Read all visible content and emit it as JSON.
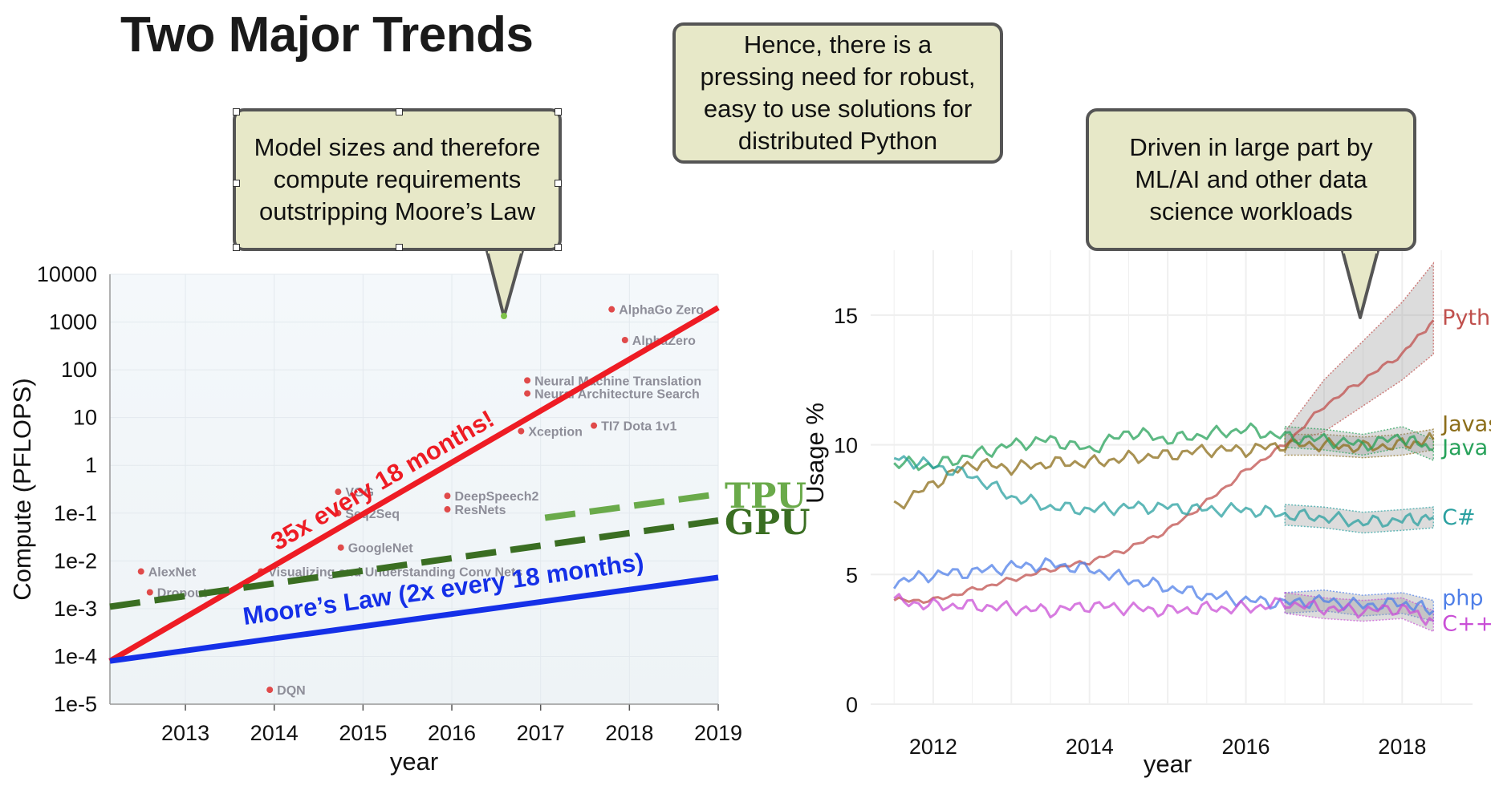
{
  "title": "Two Major Trends",
  "callouts": {
    "model": "Model sizes and therefore\ncompute requirements\noutstripping Moore’s Law",
    "need": "Hence, there is a\npressing need for robust,\neasy to use solutions for\ndistributed Python",
    "ml": "Driven in large part by\nML/AI and other data\nscience workloads"
  },
  "colors": {
    "red_trend": "#ee1c24",
    "blue_trend": "#1530e8",
    "tpu": "#6aaa4a",
    "gpu": "#3a6e22",
    "point": "#e04a4a",
    "callout_fill": "#e7e8c8",
    "python": "#c0504d",
    "java": "#27a25a",
    "javascript": "#8c6e1a",
    "csharp": "#2aa0a0",
    "php": "#4f7fe8",
    "cpp": "#c94fd6"
  },
  "chart_data": [
    {
      "type": "scatter",
      "xlabel": "year",
      "ylabel": "Compute (PFLOPS)",
      "xlim": [
        2012.15,
        2019
      ],
      "ylim": [
        1e-05,
        10000
      ],
      "log_y": true,
      "x_ticks": [
        "2013",
        "2014",
        "2015",
        "2016",
        "2017",
        "2018",
        "2019"
      ],
      "y_ticks": [
        {
          "label": "10000",
          "value": 10000
        },
        {
          "label": "1000",
          "value": 1000
        },
        {
          "label": "100",
          "value": 100
        },
        {
          "label": "10",
          "value": 10
        },
        {
          "label": "1",
          "value": 1
        },
        {
          "label": "1e-1",
          "value": 0.1
        },
        {
          "label": "1e-2",
          "value": 0.01
        },
        {
          "label": "1e-3",
          "value": 0.001
        },
        {
          "label": "1e-4",
          "value": 0.0001
        },
        {
          "label": "1e-5",
          "value": 1e-05
        }
      ],
      "points": [
        {
          "label": "AlexNet",
          "x": 2012.5,
          "y": 0.006
        },
        {
          "label": "Dropout",
          "x": 2012.6,
          "y": 0.0022
        },
        {
          "label": "DQN",
          "x": 2013.95,
          "y": 2e-05
        },
        {
          "label": "Visualizing and Understanding Conv Nets",
          "x": 2013.85,
          "y": 0.006
        },
        {
          "label": "VGG",
          "x": 2014.72,
          "y": 0.28
        },
        {
          "label": "Seq2Seq",
          "x": 2014.72,
          "y": 0.1
        },
        {
          "label": "GoogleNet",
          "x": 2014.75,
          "y": 0.019
        },
        {
          "label": "DeepSpeech2",
          "x": 2015.95,
          "y": 0.23
        },
        {
          "label": "ResNets",
          "x": 2015.95,
          "y": 0.12
        },
        {
          "label": "Xception",
          "x": 2016.78,
          "y": 5.2
        },
        {
          "label": "Neural Machine Translation",
          "x": 2016.85,
          "y": 60
        },
        {
          "label": "Neural Architecture Search",
          "x": 2016.85,
          "y": 32
        },
        {
          "label": "TI7 Dota 1v1",
          "x": 2017.6,
          "y": 6.8
        },
        {
          "label": "AlphaGo Zero",
          "x": 2017.8,
          "y": 1850
        },
        {
          "label": "AlphaZero",
          "x": 2017.95,
          "y": 420
        }
      ],
      "trend_lines": [
        {
          "label": "35x every 18 months!",
          "from": [
            2012.15,
            8e-05
          ],
          "to": [
            2019,
            2000
          ],
          "style": "solid",
          "color_key": "red_trend"
        },
        {
          "label": "Moore’s Law (2x every 18 months)",
          "from": [
            2012.15,
            8e-05
          ],
          "to": [
            2019,
            0.0045
          ],
          "style": "solid",
          "color_key": "blue_trend"
        },
        {
          "label": "GPU",
          "from": [
            2012.15,
            0.0011
          ],
          "to": [
            2019,
            0.07
          ],
          "style": "dashed",
          "color_key": "gpu"
        },
        {
          "label": "TPU",
          "from": [
            2017.05,
            0.08
          ],
          "to": [
            2019,
            0.25
          ],
          "style": "dashed",
          "color_key": "tpu"
        }
      ]
    },
    {
      "type": "line",
      "xlabel": "year",
      "ylabel": "Usage %",
      "xlim": [
        2011.2,
        2018.9
      ],
      "ylim": [
        0,
        17.5
      ],
      "x_ticks": [
        "2012",
        "2014",
        "2016",
        "2018"
      ],
      "y_ticks": [
        "0",
        "5",
        "10",
        "15"
      ],
      "x_tick_values": [
        2012,
        2014,
        2016,
        2018
      ],
      "y_tick_values": [
        0,
        5,
        10,
        15
      ],
      "x": [
        2011.5,
        2012.0,
        2012.5,
        2013.0,
        2013.5,
        2014.0,
        2014.5,
        2015.0,
        2015.5,
        2016.0,
        2016.5,
        2017.0,
        2017.5,
        2018.0,
        2018.4
      ],
      "series": [
        {
          "name": "Python",
          "color_key": "python",
          "values": [
            4.0,
            4.0,
            4.4,
            4.8,
            5.2,
            5.5,
            6.0,
            6.7,
            7.8,
            9.0,
            10.0,
            11.5,
            12.5,
            13.5,
            14.8
          ],
          "band_from": 2016.5,
          "band_lo": [
            10.0,
            10.5,
            11.5,
            12.5,
            13.5
          ],
          "band_hi": [
            10.5,
            12.5,
            14.0,
            15.5,
            17.0
          ]
        },
        {
          "name": "Javasc.",
          "color_key": "javascript",
          "values": [
            7.6,
            8.5,
            9.3,
            9.1,
            9.3,
            9.3,
            9.5,
            9.6,
            9.8,
            9.8,
            10.0,
            10.0,
            9.9,
            10.0,
            10.2
          ]
        },
        {
          "name": "Java",
          "color_key": "java",
          "values": [
            9.3,
            9.2,
            9.6,
            10.0,
            10.2,
            9.8,
            10.5,
            10.2,
            10.4,
            10.6,
            10.3,
            10.2,
            10.0,
            10.3,
            9.8
          ]
        },
        {
          "name": "C#",
          "color_key": "csharp",
          "values": [
            9.5,
            9.2,
            8.8,
            8.0,
            7.6,
            7.5,
            7.6,
            7.6,
            7.5,
            7.5,
            7.3,
            7.2,
            7.0,
            7.1,
            7.2
          ]
        },
        {
          "name": "php",
          "color_key": "php",
          "values": [
            4.7,
            5.0,
            5.1,
            5.3,
            5.4,
            5.2,
            4.8,
            4.5,
            4.2,
            4.0,
            3.9,
            4.0,
            3.8,
            3.9,
            3.6
          ]
        },
        {
          "name": "C++",
          "color_key": "cpp",
          "values": [
            4.0,
            3.8,
            3.8,
            3.7,
            3.6,
            3.8,
            3.7,
            3.6,
            3.7,
            3.7,
            3.9,
            3.7,
            3.6,
            3.7,
            3.2
          ]
        }
      ]
    }
  ]
}
